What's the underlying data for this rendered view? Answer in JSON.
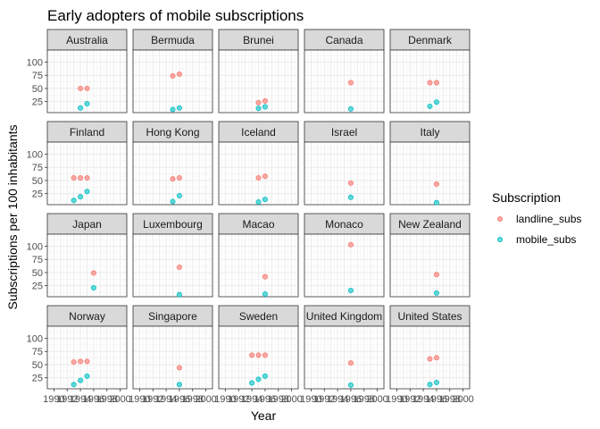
{
  "chart_data": {
    "type": "scatter",
    "title": "Early adopters of mobile subscriptions",
    "xlabel": "Year",
    "ylabel": "Subscriptions per 100 inhabitants",
    "xlim": [
      1989,
      2001
    ],
    "ylim": [
      4,
      123
    ],
    "x_ticks": [
      1990,
      1992,
      1994,
      1996,
      1998,
      2000
    ],
    "y_ticks": [
      25,
      50,
      75,
      100
    ],
    "grid": true,
    "facet": {
      "ncol": 5,
      "nrow": 4
    },
    "legend": {
      "title": "Subscription",
      "position": "right",
      "entries": [
        {
          "name": "landline_subs",
          "color": "#F8766D"
        },
        {
          "name": "mobile_subs",
          "color": "#00BFC4"
        }
      ]
    },
    "facets": [
      {
        "name": "Australia",
        "landline_subs": [
          [
            1994,
            50
          ],
          [
            1995,
            50
          ]
        ],
        "mobile_subs": [
          [
            1994,
            13
          ],
          [
            1995,
            21
          ]
        ]
      },
      {
        "name": "Bermuda",
        "landline_subs": [
          [
            1995,
            74
          ],
          [
            1996,
            77
          ]
        ],
        "mobile_subs": [
          [
            1995,
            10
          ],
          [
            1996,
            13
          ]
        ]
      },
      {
        "name": "Brunei",
        "landline_subs": [
          [
            1995,
            23
          ],
          [
            1996,
            26
          ]
        ],
        "mobile_subs": [
          [
            1995,
            12
          ],
          [
            1996,
            15
          ]
        ]
      },
      {
        "name": "Canada",
        "landline_subs": [
          [
            1996,
            61
          ]
        ],
        "mobile_subs": [
          [
            1996,
            11
          ]
        ]
      },
      {
        "name": "Denmark",
        "landline_subs": [
          [
            1995,
            61
          ],
          [
            1996,
            61
          ]
        ],
        "mobile_subs": [
          [
            1995,
            16
          ],
          [
            1996,
            24
          ]
        ]
      },
      {
        "name": "Finland",
        "landline_subs": [
          [
            1993,
            55
          ],
          [
            1994,
            55
          ],
          [
            1995,
            55
          ]
        ],
        "mobile_subs": [
          [
            1993,
            12
          ],
          [
            1994,
            19
          ],
          [
            1995,
            29
          ]
        ]
      },
      {
        "name": "Hong Kong",
        "landline_subs": [
          [
            1995,
            53
          ],
          [
            1996,
            55
          ]
        ],
        "mobile_subs": [
          [
            1995,
            10
          ],
          [
            1996,
            21
          ]
        ]
      },
      {
        "name": "Iceland",
        "landline_subs": [
          [
            1995,
            55
          ],
          [
            1996,
            58
          ]
        ],
        "mobile_subs": [
          [
            1995,
            9
          ],
          [
            1996,
            14
          ]
        ]
      },
      {
        "name": "Israel",
        "landline_subs": [
          [
            1996,
            45
          ]
        ],
        "mobile_subs": [
          [
            1996,
            18
          ]
        ]
      },
      {
        "name": "Italy",
        "landline_subs": [
          [
            1996,
            43
          ]
        ],
        "mobile_subs": [
          [
            1996,
            8
          ]
        ]
      },
      {
        "name": "Japan",
        "landline_subs": [
          [
            1996,
            49
          ]
        ],
        "mobile_subs": [
          [
            1996,
            21
          ]
        ]
      },
      {
        "name": "Luxembourg",
        "landline_subs": [
          [
            1996,
            60
          ]
        ],
        "mobile_subs": [
          [
            1996,
            8
          ]
        ]
      },
      {
        "name": "Macao",
        "landline_subs": [
          [
            1996,
            42
          ]
        ],
        "mobile_subs": [
          [
            1996,
            9
          ]
        ]
      },
      {
        "name": "Monaco",
        "landline_subs": [
          [
            1996,
            103
          ]
        ],
        "mobile_subs": [
          [
            1996,
            16
          ]
        ]
      },
      {
        "name": "New Zealand",
        "landline_subs": [
          [
            1996,
            46
          ]
        ],
        "mobile_subs": [
          [
            1996,
            11
          ]
        ]
      },
      {
        "name": "Norway",
        "landline_subs": [
          [
            1993,
            55
          ],
          [
            1994,
            56
          ],
          [
            1995,
            56
          ]
        ],
        "mobile_subs": [
          [
            1993,
            12
          ],
          [
            1994,
            20
          ],
          [
            1995,
            28
          ]
        ]
      },
      {
        "name": "Singapore",
        "landline_subs": [
          [
            1996,
            44
          ]
        ],
        "mobile_subs": [
          [
            1996,
            12
          ]
        ]
      },
      {
        "name": "Sweden",
        "landline_subs": [
          [
            1994,
            68
          ],
          [
            1995,
            68
          ],
          [
            1996,
            68
          ]
        ],
        "mobile_subs": [
          [
            1994,
            15
          ],
          [
            1995,
            22
          ],
          [
            1996,
            28
          ]
        ]
      },
      {
        "name": "United Kingdom",
        "landline_subs": [
          [
            1996,
            53
          ]
        ],
        "mobile_subs": [
          [
            1996,
            11
          ]
        ]
      },
      {
        "name": "United States",
        "landline_subs": [
          [
            1995,
            61
          ],
          [
            1996,
            63
          ]
        ],
        "mobile_subs": [
          [
            1995,
            12
          ],
          [
            1996,
            16
          ]
        ]
      }
    ]
  }
}
